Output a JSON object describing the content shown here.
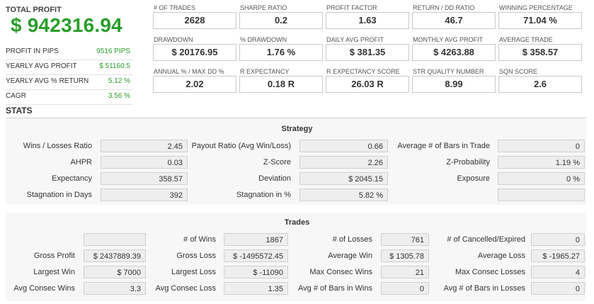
{
  "total": {
    "label": "TOTAL PROFIT",
    "value": "$ 942316.94"
  },
  "side_stats": [
    {
      "label": "PROFIT IN PIPS",
      "value": "9516 PIPS"
    },
    {
      "label": "YEARLY AVG PROFIT",
      "value": "$ 51160.5"
    },
    {
      "label": "YEARLY AVG % RETURN",
      "value": "5.12 %"
    },
    {
      "label": "CAGR",
      "value": "3.56 %"
    }
  ],
  "kpis": [
    {
      "label": "# OF TRADES",
      "value": "2628"
    },
    {
      "label": "SHARPE RATIO",
      "value": "0.2"
    },
    {
      "label": "PROFIT FACTOR",
      "value": "1.63"
    },
    {
      "label": "RETURN / DD RATIO",
      "value": "46.7"
    },
    {
      "label": "WINNING PERCENTAGE",
      "value": "71.04 %"
    },
    {
      "label": "DRAWDOWN",
      "value": "$ 20176.95"
    },
    {
      "label": "% DRAWDOWN",
      "value": "1.76 %"
    },
    {
      "label": "DAILY AVG PROFIT",
      "value": "$ 381.35"
    },
    {
      "label": "MONTHLY AVG PROFIT",
      "value": "$ 4263.88"
    },
    {
      "label": "AVERAGE TRADE",
      "value": "$ 358.57"
    },
    {
      "label": "ANNUAL % / MAX DD %",
      "value": "2.02"
    },
    {
      "label": "R EXPECTANCY",
      "value": "0.18 R"
    },
    {
      "label": "R EXPECTANCY SCORE",
      "value": "26.03 R"
    },
    {
      "label": "STR QUALITY NUMBER",
      "value": "8.99"
    },
    {
      "label": "SQN SCORE",
      "value": "2.6"
    }
  ],
  "stats_title": "STATS",
  "strategy": {
    "title": "Strategy",
    "rows": [
      [
        {
          "label": "Wins / Losses Ratio",
          "value": "2.45"
        },
        {
          "label": "Payout Ratio (Avg Win/Loss)",
          "value": "0.66"
        },
        {
          "label": "Average # of Bars in Trade",
          "value": "0"
        }
      ],
      [
        {
          "label": "AHPR",
          "value": "0.03"
        },
        {
          "label": "Z-Score",
          "value": "2.26"
        },
        {
          "label": "Z-Probability",
          "value": "1.19 %"
        }
      ],
      [
        {
          "label": "Expectancy",
          "value": "358.57"
        },
        {
          "label": "Deviation",
          "value": "$ 2045.15"
        },
        {
          "label": "Exposure",
          "value": "0 %"
        }
      ],
      [
        {
          "label": "Stagnation in Days",
          "value": "392"
        },
        {
          "label": "Stagnation in %",
          "value": "5.82 %"
        },
        {
          "label": "",
          "value": ""
        }
      ]
    ]
  },
  "trades": {
    "title": "Trades",
    "rows": [
      [
        {
          "label": "",
          "value": ""
        },
        {
          "label": "# of Wins",
          "value": "1867"
        },
        {
          "label": "# of Losses",
          "value": "761"
        },
        {
          "label": "# of Cancelled/Expired",
          "value": "0"
        }
      ],
      [
        {
          "label": "Gross Profit",
          "value": "$ 2437889.39"
        },
        {
          "label": "Gross Loss",
          "value": "$ -1495572.45"
        },
        {
          "label": "Average Win",
          "value": "$ 1305.78"
        },
        {
          "label": "Average Loss",
          "value": "$ -1965.27"
        }
      ],
      [
        {
          "label": "Largest Win",
          "value": "$ 7000"
        },
        {
          "label": "Largest Loss",
          "value": "$ -11090"
        },
        {
          "label": "Max Consec Wins",
          "value": "21"
        },
        {
          "label": "Max Consec Losses",
          "value": "4"
        }
      ],
      [
        {
          "label": "Avg Consec Wins",
          "value": "3.3"
        },
        {
          "label": "Avg Consec Loss",
          "value": "1.35"
        },
        {
          "label": "Avg # of Bars in Wins",
          "value": "0"
        },
        {
          "label": "Avg # of Bars in Losses",
          "value": "0"
        }
      ]
    ]
  },
  "colors": {
    "profit_green": "#2a9d2a",
    "box_border": "#c9c9c9",
    "section_bg": "#f7f7f7"
  }
}
